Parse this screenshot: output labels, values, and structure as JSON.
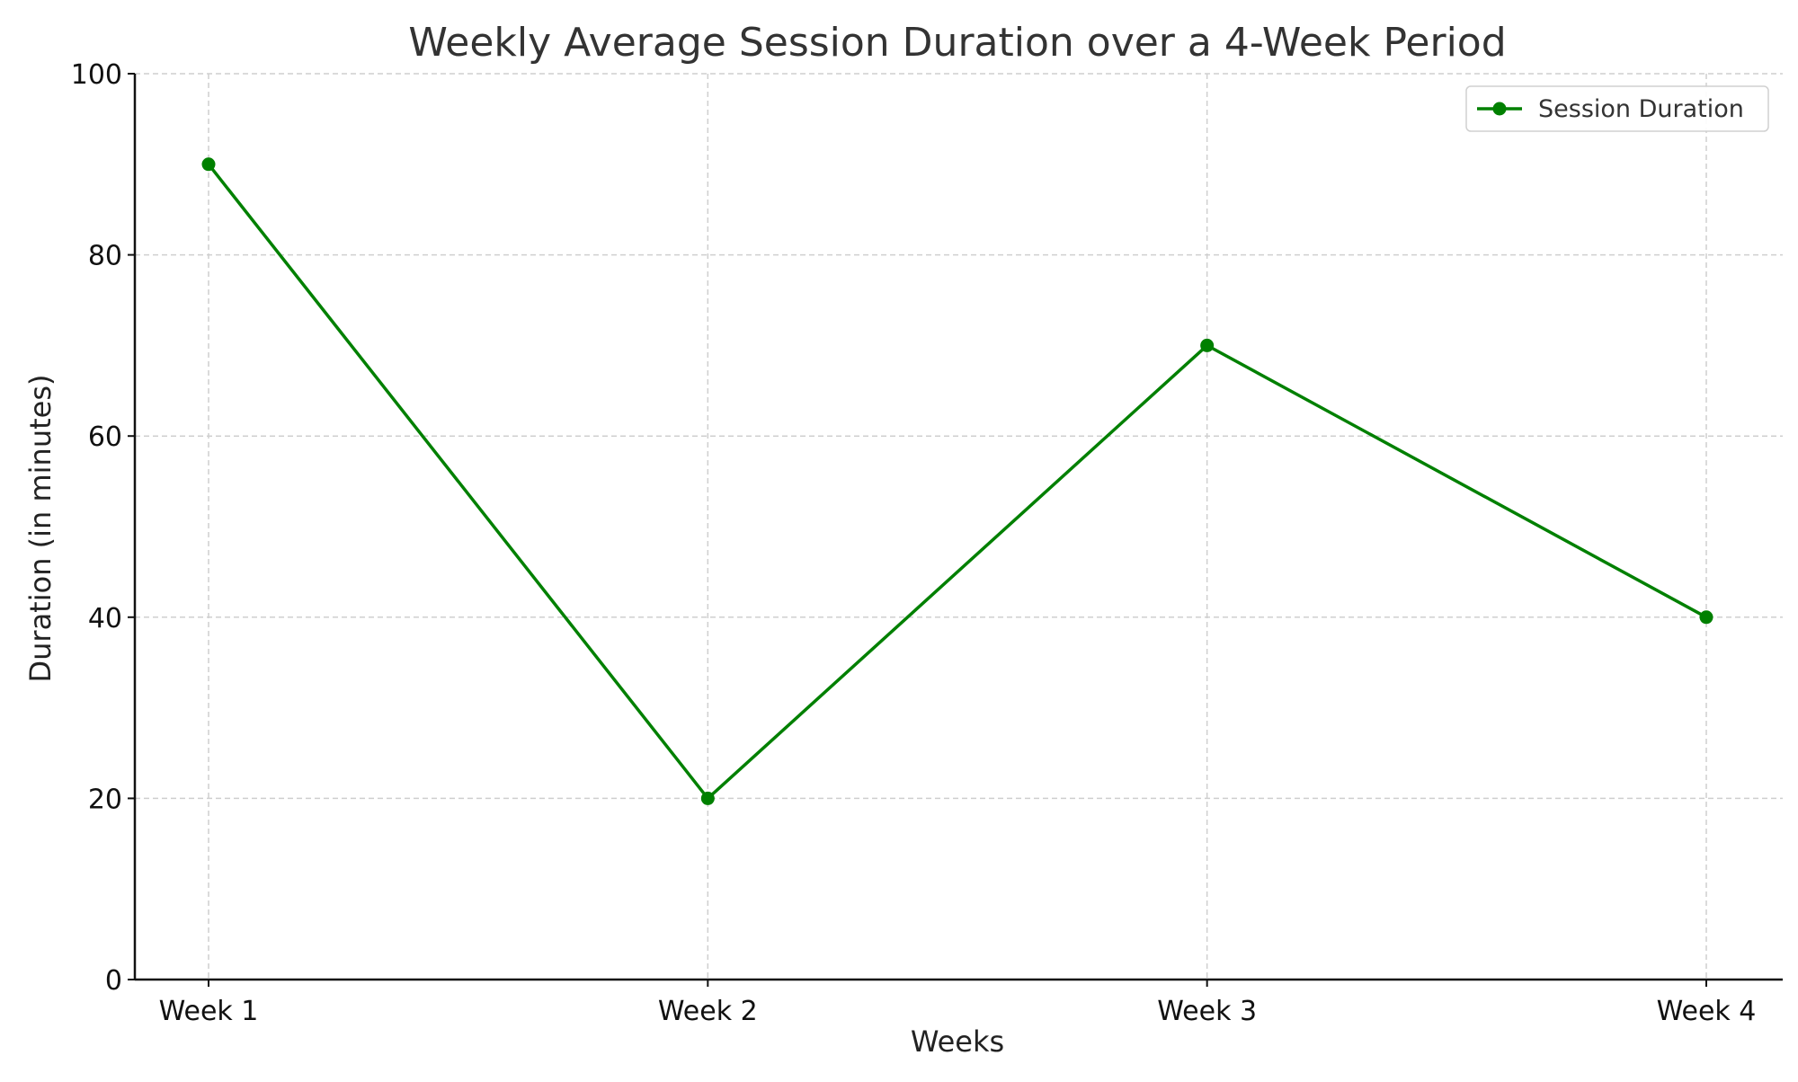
{
  "chart_data": {
    "type": "line",
    "title": "Weekly Average Session Duration over a 4-Week Period",
    "xlabel": "Weeks",
    "ylabel": "Duration (in minutes)",
    "categories": [
      "Week 1",
      "Week 2",
      "Week 3",
      "Week 4"
    ],
    "ylim": [
      0,
      100
    ],
    "yticks": [
      0,
      20,
      40,
      60,
      80,
      100
    ],
    "grid": true,
    "legend_position": "top-right",
    "series": [
      {
        "name": "Session Duration",
        "values": [
          90,
          20,
          70,
          40
        ],
        "color": "#008000",
        "marker": "circle"
      }
    ]
  }
}
